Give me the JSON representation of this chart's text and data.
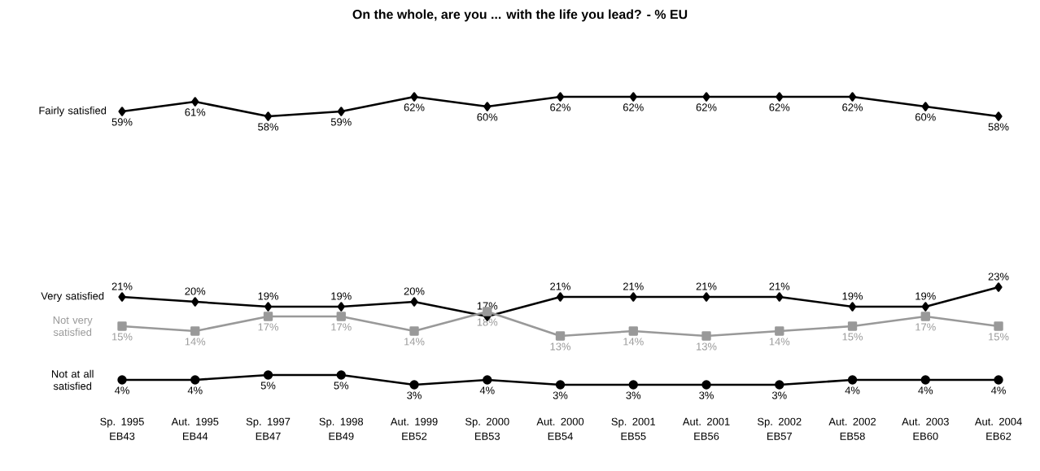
{
  "chart_data": {
    "type": "line",
    "title": "On the whole, are you ... with the life you lead? - % EU",
    "categories": [
      "Sp. 1995 EB43",
      "Aut. 1995 EB44",
      "Sp. 1997 EB47",
      "Sp. 1998 EB49",
      "Aut. 1999 EB52",
      "Sp. 2000 EB53",
      "Aut. 2000 EB54",
      "Sp. 2001 EB55",
      "Aut. 2001 EB56",
      "Sp. 2002 EB57",
      "Aut. 2002 EB58",
      "Aut. 2003 EB60",
      "Aut. 2004 EB62"
    ],
    "series": [
      {
        "name": "Fairly satisfied",
        "color": "#000000",
        "marker": "diamond",
        "values": [
          59,
          61,
          58,
          59,
          62,
          60,
          62,
          62,
          62,
          62,
          62,
          60,
          58
        ],
        "value_labels": [
          "59%",
          "61%",
          "58%",
          "59%",
          "62%",
          "60%",
          "62%",
          "62%",
          "62%",
          "62%",
          "62%",
          "60%",
          "58%"
        ]
      },
      {
        "name": "Very satisfied",
        "color": "#000000",
        "marker": "diamond",
        "values": [
          21,
          20,
          19,
          19,
          20,
          17,
          21,
          21,
          21,
          21,
          19,
          19,
          23
        ],
        "value_labels": [
          "21%",
          "20%",
          "19%",
          "19%",
          "20%",
          "17%",
          "21%",
          "21%",
          "21%",
          "21%",
          "19%",
          "19%",
          "23%"
        ]
      },
      {
        "name": "Not very satisfied",
        "color": "#999999",
        "marker": "square",
        "values": [
          15,
          14,
          17,
          17,
          14,
          18,
          13,
          14,
          13,
          14,
          15,
          17,
          15
        ],
        "value_labels": [
          "15%",
          "14%",
          "17%",
          "17%",
          "14%",
          "18%",
          "13%",
          "14%",
          "13%",
          "14%",
          "15%",
          "17%",
          "15%"
        ]
      },
      {
        "name": "Not at all satisfied",
        "color": "#000000",
        "marker": "circle",
        "values": [
          4,
          4,
          5,
          5,
          3,
          4,
          3,
          3,
          3,
          3,
          4,
          4,
          4
        ],
        "value_labels": [
          "4%",
          "4%",
          "5%",
          "5%",
          "3%",
          "4%",
          "3%",
          "3%",
          "3%",
          "3%",
          "4%",
          "4%",
          "4%"
        ]
      }
    ]
  }
}
